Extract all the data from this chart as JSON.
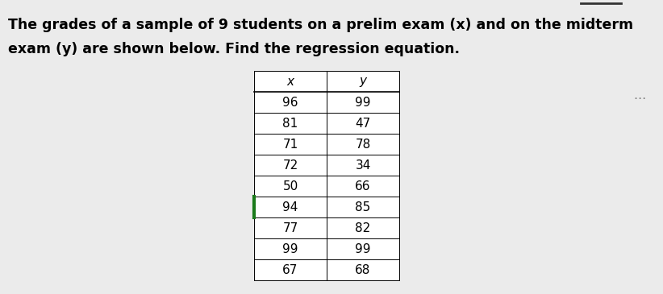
{
  "title_line1": "The grades of a sample of 9 students on a prelim exam (x) and on the midterm",
  "title_line2": "exam (y) are shown below. Find the regression equation.",
  "col_headers": [
    "x",
    "y"
  ],
  "x_values": [
    96,
    81,
    71,
    72,
    50,
    94,
    77,
    99,
    67
  ],
  "y_values": [
    99,
    47,
    78,
    34,
    66,
    85,
    82,
    99,
    68
  ],
  "bg_color": "#ebebeb",
  "table_bg": "#ffffff",
  "text_color": "#000000",
  "title_fontsize": 12.5,
  "table_fontsize": 11,
  "ellipsis_color": "#777777",
  "highlighted_row": 5,
  "highlighted_border_color": "#1a7a1a",
  "border_color": "#000000",
  "top_bar_color": "#333333"
}
